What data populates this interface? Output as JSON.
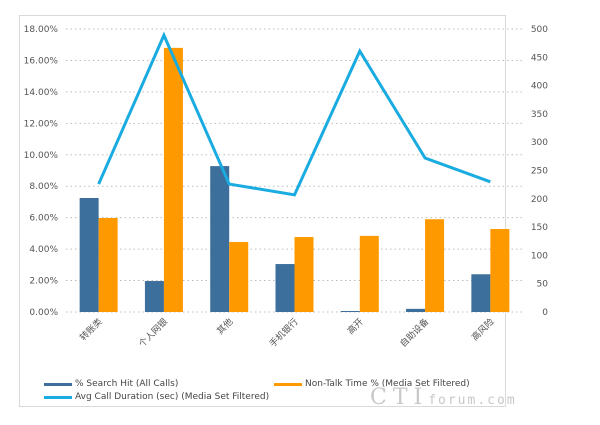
{
  "chart_data": {
    "type": "bar",
    "title": "",
    "xlabel": "",
    "ylabel": "",
    "y2label": "",
    "categories": [
      "转账类",
      "个人网银",
      "其他",
      "手机银行",
      "高开",
      "自助设备",
      "高风险"
    ],
    "ylim": [
      0,
      18
    ],
    "y2lim": [
      0,
      500
    ],
    "yticks": [
      "0.00%",
      "2.00%",
      "4.00%",
      "6.00%",
      "8.00%",
      "10.00%",
      "12.00%",
      "14.00%",
      "16.00%",
      "18.00%"
    ],
    "y2ticks": [
      "0",
      "50",
      "100",
      "150",
      "200",
      "250",
      "300",
      "350",
      "400",
      "450",
      "500"
    ],
    "grid": true,
    "legend_position": "bottom",
    "series": [
      {
        "name": "% Search Hit (All Calls)",
        "type": "bar",
        "axis": "left",
        "color": "#3d6f9c",
        "values": [
          7.25,
          1.97,
          9.28,
          3.05,
          0.05,
          0.2,
          2.4
        ]
      },
      {
        "name": "Non-Talk Time % (Media Set Filtered)",
        "type": "bar",
        "axis": "left",
        "color": "#ff9900",
        "values": [
          5.98,
          16.8,
          4.45,
          4.77,
          4.84,
          5.9,
          5.28
        ]
      },
      {
        "name": "Avg Call Duration (sec) (Media Set Filtered)",
        "type": "line",
        "axis": "right",
        "color": "#1aabe0",
        "values": [
          226,
          489,
          226,
          207,
          461,
          272,
          230
        ]
      }
    ]
  },
  "legend": {
    "items": [
      {
        "label": "% Search Hit (All Calls)",
        "color": "#3d6f9c"
      },
      {
        "label": "Non-Talk Time % (Media Set Filtered)",
        "color": "#ff9900"
      },
      {
        "label": "Avg Call Duration (sec) (Media Set Filtered)",
        "color": "#1aabe0"
      }
    ]
  },
  "watermark": {
    "big": "CTI",
    "small": "forum.com"
  }
}
